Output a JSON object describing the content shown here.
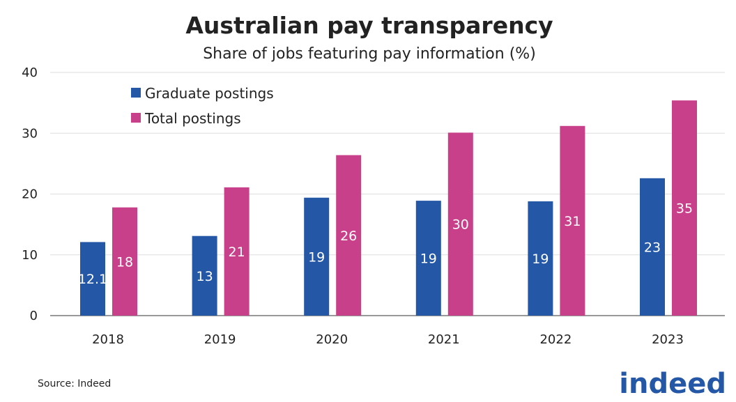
{
  "chart_data": {
    "type": "bar",
    "title": "Australian pay transparency",
    "subtitle": "Share of jobs featuring pay information (%)",
    "categories": [
      "2018",
      "2019",
      "2020",
      "2021",
      "2022",
      "2023"
    ],
    "series": [
      {
        "name": "Graduate postings",
        "color": "#2557a7",
        "values": [
          12.1,
          13.1,
          19.4,
          18.9,
          18.8,
          22.6
        ],
        "labels": [
          "12.1",
          "13",
          "19",
          "19",
          "19",
          "23"
        ]
      },
      {
        "name": "Total postings",
        "color": "#c9408a",
        "values": [
          17.8,
          21.1,
          26.4,
          30.1,
          31.2,
          35.4
        ],
        "labels": [
          "18",
          "21",
          "26",
          "30",
          "31",
          "35"
        ]
      }
    ],
    "ylim": [
      0,
      40
    ],
    "yticks": [
      "0",
      "10",
      "20",
      "30",
      "40"
    ],
    "grid": true,
    "legend_position": "top-left",
    "xlabel": "",
    "ylabel": ""
  },
  "source": "Source: Indeed",
  "logo": "indeed"
}
